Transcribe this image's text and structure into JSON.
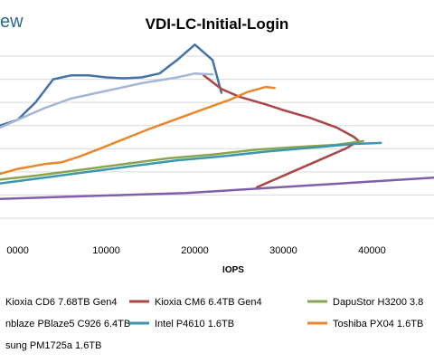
{
  "brand": {
    "logo_text": "ew"
  },
  "chart_data": {
    "type": "line",
    "title": "VDI-LC-Initial-Login",
    "xlabel": "IOPS",
    "ylabel": "",
    "xlim": [
      -2000,
      47000
    ],
    "ylim": [
      0,
      10
    ],
    "grid": true,
    "legend_position": "bottom",
    "x_ticks": [
      {
        "value": 0,
        "label": "0000"
      },
      {
        "value": 10000,
        "label": "10000"
      },
      {
        "value": 20000,
        "label": "20000"
      },
      {
        "value": 30000,
        "label": "30000"
      },
      {
        "value": 40000,
        "label": "40000"
      }
    ],
    "series": [
      {
        "name": "Kioxia CD6 7.68TB Gen4",
        "color": "#4572a7",
        "points": [
          [
            -2000,
            5.6
          ],
          [
            0,
            5.9
          ],
          [
            2000,
            6.8
          ],
          [
            4000,
            8.0
          ],
          [
            6000,
            8.2
          ],
          [
            8000,
            8.2
          ],
          [
            10000,
            8.1
          ],
          [
            12000,
            8.05
          ],
          [
            14000,
            8.1
          ],
          [
            16000,
            8.3
          ],
          [
            18000,
            9.0
          ],
          [
            20000,
            9.8
          ],
          [
            22000,
            9.0
          ],
          [
            23000,
            7.3
          ]
        ]
      },
      {
        "name": "Kioxia CM6 6.4TB Gen4",
        "color": "#aa4643",
        "points": [
          [
            21000,
            8.2
          ],
          [
            23000,
            7.5
          ],
          [
            25000,
            7.1
          ],
          [
            28000,
            6.7
          ],
          [
            30000,
            6.4
          ],
          [
            33000,
            6.0
          ],
          [
            36000,
            5.5
          ],
          [
            38000,
            5.0
          ],
          [
            38500,
            4.8
          ],
          [
            37000,
            4.4
          ],
          [
            35000,
            4.0
          ],
          [
            33000,
            3.6
          ],
          [
            31000,
            3.2
          ],
          [
            29000,
            2.8
          ],
          [
            27000,
            2.4
          ]
        ]
      },
      {
        "name": "DapuStor H3200 3.8",
        "color": "#89a54e",
        "points": [
          [
            -2000,
            2.8
          ],
          [
            2000,
            3.0
          ],
          [
            7000,
            3.3
          ],
          [
            12000,
            3.6
          ],
          [
            17000,
            3.9
          ],
          [
            22000,
            4.1
          ],
          [
            27000,
            4.35
          ],
          [
            32000,
            4.5
          ],
          [
            36000,
            4.6
          ],
          [
            39000,
            4.8
          ]
        ]
      },
      {
        "name": "nblaze PBlaze5 C926 6.4TB",
        "color": "#a3b6d6",
        "points": [
          [
            -2000,
            5.5
          ],
          [
            0,
            5.9
          ],
          [
            3000,
            6.5
          ],
          [
            6000,
            7.0
          ],
          [
            10000,
            7.4
          ],
          [
            14000,
            7.8
          ],
          [
            18000,
            8.1
          ],
          [
            20000,
            8.3
          ],
          [
            22000,
            8.25
          ]
        ]
      },
      {
        "name": "Intel P4610 1.6TB",
        "color": "#3d96ae",
        "points": [
          [
            -2000,
            2.6
          ],
          [
            3000,
            2.9
          ],
          [
            8000,
            3.2
          ],
          [
            13000,
            3.5
          ],
          [
            18000,
            3.8
          ],
          [
            23000,
            4.0
          ],
          [
            28000,
            4.25
          ],
          [
            33000,
            4.45
          ],
          [
            38000,
            4.65
          ],
          [
            41000,
            4.7
          ]
        ]
      },
      {
        "name": "Toshiba PX04 1.6TB",
        "color": "#e8872b",
        "points": [
          [
            -2000,
            3.1
          ],
          [
            0,
            3.35
          ],
          [
            3000,
            3.6
          ],
          [
            5000,
            3.7
          ],
          [
            7000,
            4.0
          ],
          [
            9000,
            4.35
          ],
          [
            12000,
            4.9
          ],
          [
            15000,
            5.45
          ],
          [
            18000,
            5.95
          ],
          [
            21000,
            6.45
          ],
          [
            24000,
            6.95
          ],
          [
            26000,
            7.35
          ],
          [
            28000,
            7.6
          ],
          [
            29000,
            7.55
          ]
        ]
      },
      {
        "name": "sung PM1725a 1.6TB",
        "color": "#7f5fa8",
        "points": [
          [
            -2000,
            1.8
          ],
          [
            5000,
            1.9
          ],
          [
            12000,
            2.0
          ],
          [
            19000,
            2.1
          ],
          [
            26000,
            2.3
          ],
          [
            33000,
            2.5
          ],
          [
            40000,
            2.7
          ],
          [
            47000,
            2.9
          ]
        ]
      }
    ]
  }
}
